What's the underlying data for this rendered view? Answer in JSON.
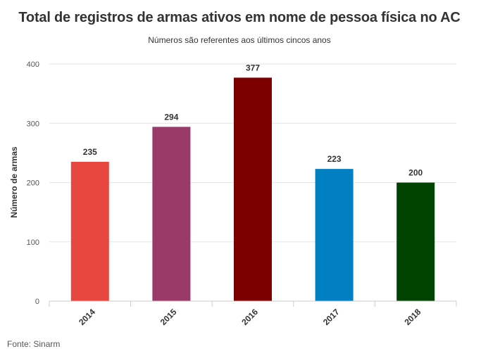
{
  "chart_data": {
    "type": "bar",
    "title": "Total de registros de armas ativos em nome de pessoa física no AC",
    "subtitle": "Números são referentes aos últimos cincos anos",
    "xlabel": "",
    "ylabel": "Número de armas",
    "categories": [
      "2014",
      "2015",
      "2016",
      "2017",
      "2018"
    ],
    "values": [
      235,
      294,
      377,
      223,
      200
    ],
    "colors": [
      "#e8473f",
      "#993a68",
      "#7d0000",
      "#0080c2",
      "#004200"
    ],
    "ylim": [
      0,
      400
    ],
    "yticks": [
      0,
      100,
      200,
      300,
      400
    ],
    "grid": true,
    "legend": "none"
  },
  "source": "Fonte: Sinarm"
}
